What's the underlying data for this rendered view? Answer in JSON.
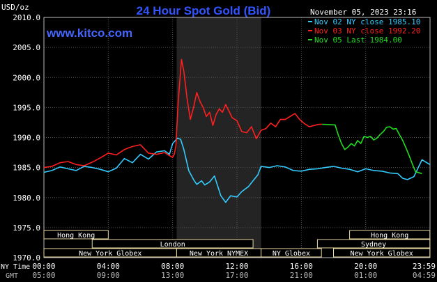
{
  "chart_data": {
    "type": "line",
    "title": "24 Hour Spot Gold (Bid)",
    "watermark": "www.kitco.com",
    "timestamp": "November 05, 2023 23:16",
    "ylabel": "USD/oz",
    "ylim": [
      1970,
      2010
    ],
    "yticks": [
      "2010.0",
      "2005.0",
      "2000.0",
      "1995.0",
      "1990.0",
      "1985.0",
      "1980.0",
      "1975.0",
      "1970.0"
    ],
    "xlim": [
      0,
      24
    ],
    "grid": true,
    "legend_position": "top-right",
    "xticks_ny": [
      "00:00",
      "04:00",
      "08:00",
      "12:00",
      "16:00",
      "20:00",
      "23:59"
    ],
    "xticks_gmt": [
      "05:00",
      "09:00",
      "13:00",
      "17:00",
      "21:00",
      "01:00",
      "04:59"
    ],
    "x_row_labels": {
      "ny": "NY Time",
      "gmt": "GMT"
    },
    "highlight_window_hours": [
      8.25,
      13.5
    ],
    "colors": {
      "nov02": "#33ccff",
      "nov03": "#ff2020",
      "nov05": "#22dd22",
      "grid": "#555555",
      "axis": "#bbbbbb",
      "title": "#3355ff",
      "session_box": "#e8d9a0",
      "shade": "#242424"
    },
    "sessions": [
      {
        "label": "Hong Kong",
        "row": 0,
        "range": [
          0,
          4
        ]
      },
      {
        "label": "Hong Kong",
        "row": 0,
        "range": [
          19,
          23.99
        ]
      },
      {
        "label": "London",
        "row": 1,
        "range": [
          3,
          13
        ]
      },
      {
        "label": "Sydney",
        "row": 1,
        "range": [
          17,
          23.99
        ]
      },
      {
        "label": "New York Globex",
        "row": 2,
        "range": [
          0,
          8.25
        ]
      },
      {
        "label": "New York NYMEX",
        "row": 2,
        "range": [
          8.25,
          13.5
        ]
      },
      {
        "label": "NY Globex",
        "row": 2,
        "range": [
          13.5,
          17.25
        ]
      },
      {
        "label": "New York Globex",
        "row": 2,
        "range": [
          18,
          23.99
        ]
      }
    ],
    "series": [
      {
        "name": "Nov 02 NY close 1985.10",
        "color": "#33ccff",
        "x": [
          0,
          0.5,
          1,
          1.5,
          2,
          2.5,
          3,
          3.5,
          4,
          4.5,
          5,
          5.5,
          6,
          6.5,
          7,
          7.5,
          7.8,
          8,
          8.3,
          8.5,
          8.7,
          9,
          9.3,
          9.5,
          9.8,
          10,
          10.3,
          10.6,
          11,
          11.3,
          11.6,
          12,
          12.3,
          12.7,
          13,
          13.3,
          13.5,
          14,
          14.5,
          15,
          15.5,
          16,
          16.5,
          17,
          17.5,
          18,
          18.5,
          19,
          19.5,
          20,
          20.5,
          21,
          21.5,
          22,
          22.3,
          22.6,
          23,
          23.5,
          23.99
        ],
        "y": [
          1984.2,
          1984.5,
          1985.1,
          1984.8,
          1984.5,
          1985.2,
          1985.0,
          1984.7,
          1984.3,
          1984.9,
          1986.5,
          1985.8,
          1987.2,
          1986.4,
          1987.6,
          1987.8,
          1987.2,
          1989.0,
          1989.9,
          1989.7,
          1988.0,
          1984.5,
          1983.0,
          1982.2,
          1982.8,
          1982.1,
          1982.6,
          1983.6,
          1980.3,
          1979.2,
          1980.3,
          1980.1,
          1981.0,
          1981.8,
          1982.8,
          1983.8,
          1985.2,
          1985.0,
          1985.3,
          1985.1,
          1984.5,
          1984.4,
          1984.7,
          1984.8,
          1985.0,
          1985.2,
          1984.9,
          1984.7,
          1984.3,
          1984.8,
          1984.5,
          1984.4,
          1984.1,
          1984.0,
          1983.2,
          1983.0,
          1983.5,
          1986.3,
          1985.5
        ]
      },
      {
        "name": "Nov 03 NY close 1992.20",
        "color": "#ff2020",
        "x": [
          0,
          0.5,
          1,
          1.5,
          2,
          2.5,
          3,
          3.5,
          4,
          4.5,
          5,
          5.5,
          6,
          6.5,
          7,
          7.5,
          7.8,
          8.0,
          8.1,
          8.2,
          8.35,
          8.55,
          8.7,
          8.9,
          9.1,
          9.3,
          9.5,
          9.7,
          9.9,
          10.1,
          10.3,
          10.5,
          10.7,
          10.9,
          11.1,
          11.3,
          11.5,
          11.7,
          12.0,
          12.3,
          12.6,
          12.9,
          13.2,
          13.5,
          13.8,
          14.1,
          14.4,
          14.7,
          15.0,
          15.3,
          15.6,
          15.9,
          16.2,
          16.5,
          16.8,
          17.1,
          17.3
        ],
        "y": [
          1985.0,
          1985.2,
          1985.8,
          1986.0,
          1985.5,
          1985.3,
          1985.9,
          1986.6,
          1987.4,
          1987.1,
          1988.0,
          1988.5,
          1988.8,
          1987.4,
          1987.2,
          1987.5,
          1987.0,
          1986.7,
          1987.2,
          1988.5,
          1996.0,
          2003.0,
          2001.0,
          1996.5,
          1993.0,
          1995.0,
          1997.5,
          1996.0,
          1995.0,
          1993.5,
          1994.2,
          1992.0,
          1993.8,
          1994.8,
          1994.2,
          1995.5,
          1994.4,
          1993.3,
          1992.8,
          1991.0,
          1990.8,
          1991.8,
          1989.8,
          1991.2,
          1991.5,
          1992.4,
          1991.8,
          1993.0,
          1993.0,
          1993.5,
          1994.0,
          1993.0,
          1992.3,
          1991.8,
          1992.0,
          1992.2,
          1992.2
        ]
      },
      {
        "name": "Nov 05 Last 1984.00",
        "color": "#22dd22",
        "x": [
          17.3,
          18.1,
          18.3,
          18.5,
          18.7,
          18.9,
          19.1,
          19.3,
          19.5,
          19.7,
          19.9,
          20.1,
          20.3,
          20.5,
          20.7,
          20.9,
          21.1,
          21.3,
          21.5,
          21.7,
          21.9,
          22.1,
          22.3,
          22.5,
          22.7,
          22.9,
          23.1,
          23.5
        ],
        "y": [
          1992.2,
          1992.1,
          1990.4,
          1989.0,
          1988.0,
          1988.4,
          1989.0,
          1988.6,
          1989.5,
          1989.0,
          1990.2,
          1990.0,
          1990.2,
          1989.6,
          1989.9,
          1990.5,
          1991.0,
          1991.7,
          1991.8,
          1991.4,
          1991.5,
          1990.5,
          1989.5,
          1988.3,
          1987.0,
          1985.6,
          1984.3,
          1984.0
        ]
      }
    ]
  }
}
